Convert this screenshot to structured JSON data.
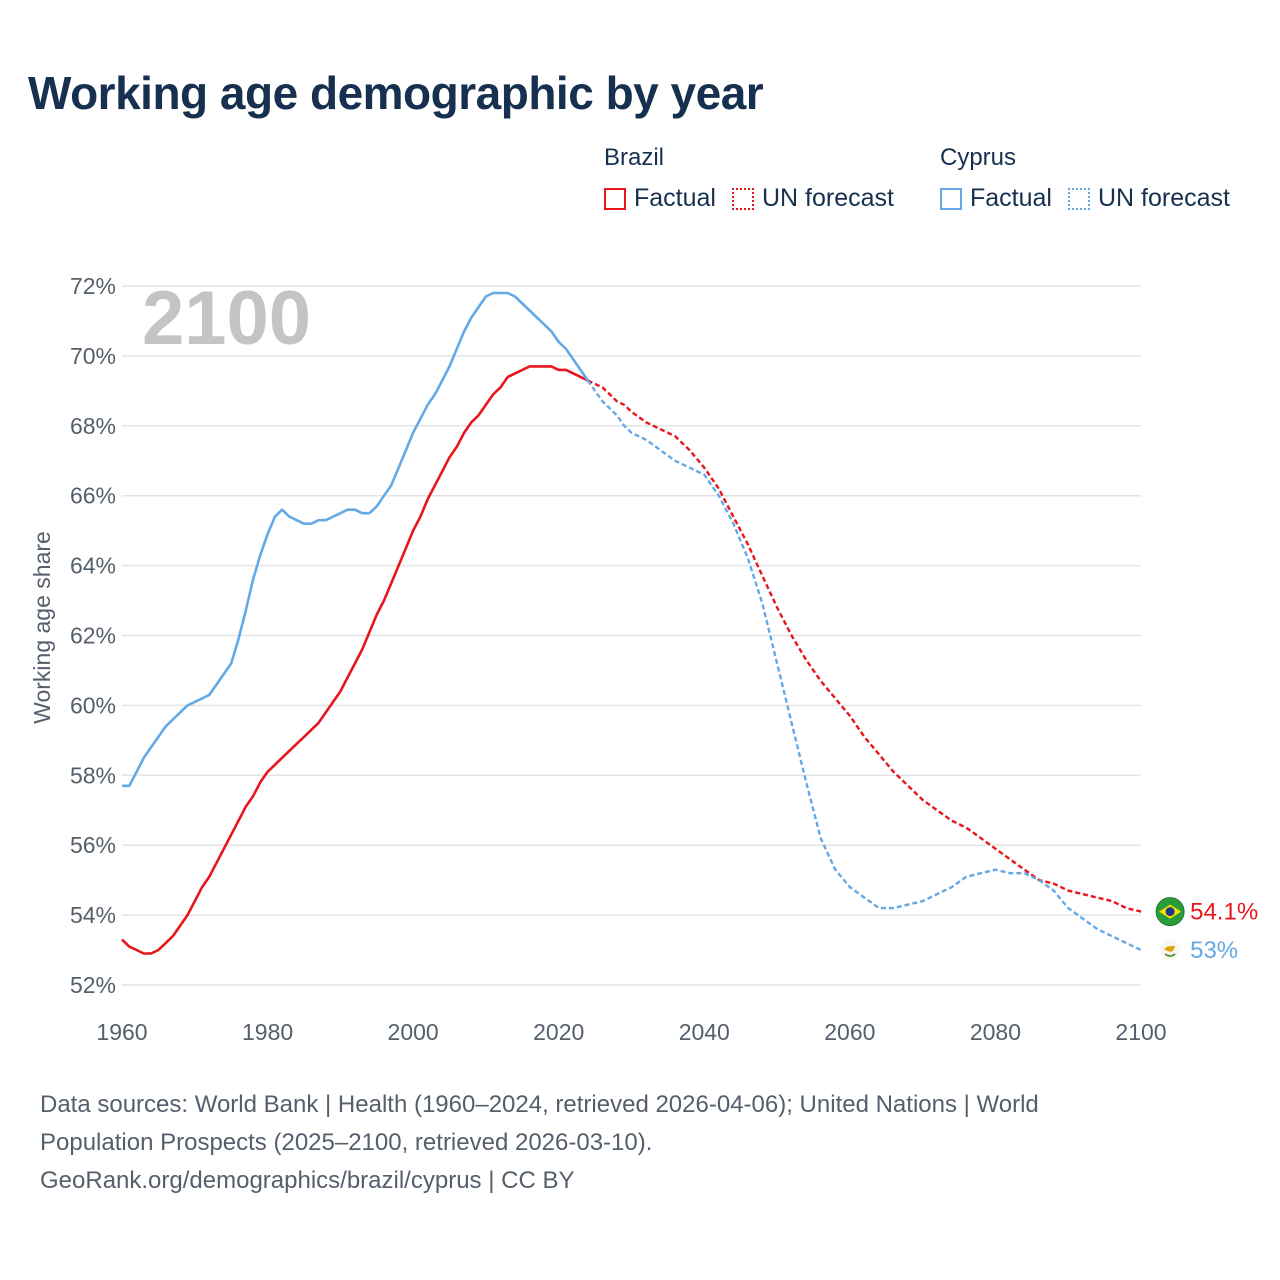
{
  "title": "Working age demographic by year",
  "legend": {
    "groups": [
      {
        "name": "Brazil",
        "color": "#e8161b",
        "items": [
          {
            "label": "Factual",
            "style": "solid"
          },
          {
            "label": "UN forecast",
            "style": "dotted"
          }
        ]
      },
      {
        "name": "Cyprus",
        "color": "#64a9e6",
        "items": [
          {
            "label": "Factual",
            "style": "solid"
          },
          {
            "label": "UN forecast",
            "style": "dotted"
          }
        ]
      }
    ]
  },
  "year_watermark": "2100",
  "footer": {
    "line1": "Data sources: World Bank | Health (1960–2024, retrieved 2026-04-06); United Nations | World",
    "line2": "Population Prospects (2025–2100, retrieved 2026-03-10).",
    "line3": "GeoRank.org/demographics/brazil/cyprus | CC BY"
  },
  "chart_data": {
    "type": "line",
    "title": "Working age demographic by year",
    "xlabel": "",
    "ylabel": "Working age share",
    "xlim": [
      1960,
      2100
    ],
    "ylim": [
      52,
      72
    ],
    "xticks": [
      1960,
      1980,
      2000,
      2020,
      2040,
      2060,
      2080,
      2100
    ],
    "xtick_labels": [
      "1960",
      "1980",
      "2000",
      "2020",
      "2040",
      "2060",
      "2080",
      "2100"
    ],
    "yticks": [
      52,
      54,
      56,
      58,
      60,
      62,
      64,
      66,
      68,
      70,
      72
    ],
    "ytick_labels": [
      "52%",
      "54%",
      "56%",
      "58%",
      "60%",
      "62%",
      "64%",
      "66%",
      "68%",
      "70%",
      "72%"
    ],
    "grid": "horizontal",
    "split_year": 2024,
    "series": [
      {
        "name": "Brazil",
        "color": "#e8161b",
        "end_label": "54.1%",
        "end_marker": "brazil-flag",
        "points": [
          [
            1960,
            53.3
          ],
          [
            1961,
            53.1
          ],
          [
            1962,
            53.0
          ],
          [
            1963,
            52.9
          ],
          [
            1964,
            52.9
          ],
          [
            1965,
            53.0
          ],
          [
            1966,
            53.2
          ],
          [
            1967,
            53.4
          ],
          [
            1968,
            53.7
          ],
          [
            1969,
            54.0
          ],
          [
            1970,
            54.4
          ],
          [
            1971,
            54.8
          ],
          [
            1972,
            55.1
          ],
          [
            1973,
            55.5
          ],
          [
            1974,
            55.9
          ],
          [
            1975,
            56.3
          ],
          [
            1976,
            56.7
          ],
          [
            1977,
            57.1
          ],
          [
            1978,
            57.4
          ],
          [
            1979,
            57.8
          ],
          [
            1980,
            58.1
          ],
          [
            1981,
            58.3
          ],
          [
            1982,
            58.5
          ],
          [
            1983,
            58.7
          ],
          [
            1984,
            58.9
          ],
          [
            1985,
            59.1
          ],
          [
            1986,
            59.3
          ],
          [
            1987,
            59.5
          ],
          [
            1988,
            59.8
          ],
          [
            1989,
            60.1
          ],
          [
            1990,
            60.4
          ],
          [
            1991,
            60.8
          ],
          [
            1992,
            61.2
          ],
          [
            1993,
            61.6
          ],
          [
            1994,
            62.1
          ],
          [
            1995,
            62.6
          ],
          [
            1996,
            63.0
          ],
          [
            1997,
            63.5
          ],
          [
            1998,
            64.0
          ],
          [
            1999,
            64.5
          ],
          [
            2000,
            65.0
          ],
          [
            2001,
            65.4
          ],
          [
            2002,
            65.9
          ],
          [
            2003,
            66.3
          ],
          [
            2004,
            66.7
          ],
          [
            2005,
            67.1
          ],
          [
            2006,
            67.4
          ],
          [
            2007,
            67.8
          ],
          [
            2008,
            68.1
          ],
          [
            2009,
            68.3
          ],
          [
            2010,
            68.6
          ],
          [
            2011,
            68.9
          ],
          [
            2012,
            69.1
          ],
          [
            2013,
            69.4
          ],
          [
            2014,
            69.5
          ],
          [
            2015,
            69.6
          ],
          [
            2016,
            69.7
          ],
          [
            2017,
            69.7
          ],
          [
            2018,
            69.7
          ],
          [
            2019,
            69.7
          ],
          [
            2020,
            69.6
          ],
          [
            2021,
            69.6
          ],
          [
            2022,
            69.5
          ],
          [
            2023,
            69.4
          ],
          [
            2024,
            69.3
          ],
          [
            2025,
            69.2
          ],
          [
            2026,
            69.1
          ],
          [
            2027,
            68.9
          ],
          [
            2028,
            68.7
          ],
          [
            2029,
            68.6
          ],
          [
            2030,
            68.4
          ],
          [
            2032,
            68.1
          ],
          [
            2034,
            67.9
          ],
          [
            2036,
            67.7
          ],
          [
            2038,
            67.3
          ],
          [
            2040,
            66.8
          ],
          [
            2042,
            66.2
          ],
          [
            2044,
            65.4
          ],
          [
            2046,
            64.6
          ],
          [
            2048,
            63.7
          ],
          [
            2050,
            62.8
          ],
          [
            2052,
            62.0
          ],
          [
            2054,
            61.3
          ],
          [
            2056,
            60.7
          ],
          [
            2058,
            60.2
          ],
          [
            2060,
            59.7
          ],
          [
            2062,
            59.1
          ],
          [
            2064,
            58.6
          ],
          [
            2066,
            58.1
          ],
          [
            2068,
            57.7
          ],
          [
            2070,
            57.3
          ],
          [
            2072,
            57.0
          ],
          [
            2074,
            56.7
          ],
          [
            2076,
            56.5
          ],
          [
            2078,
            56.2
          ],
          [
            2080,
            55.9
          ],
          [
            2082,
            55.6
          ],
          [
            2084,
            55.3
          ],
          [
            2086,
            55.0
          ],
          [
            2088,
            54.9
          ],
          [
            2090,
            54.7
          ],
          [
            2092,
            54.6
          ],
          [
            2094,
            54.5
          ],
          [
            2096,
            54.4
          ],
          [
            2098,
            54.2
          ],
          [
            2100,
            54.1
          ]
        ]
      },
      {
        "name": "Cyprus",
        "color": "#64a9e6",
        "end_label": "53%",
        "end_marker": "cyprus-flag",
        "points": [
          [
            1960,
            57.7
          ],
          [
            1961,
            57.7
          ],
          [
            1962,
            58.1
          ],
          [
            1963,
            58.5
          ],
          [
            1964,
            58.8
          ],
          [
            1965,
            59.1
          ],
          [
            1966,
            59.4
          ],
          [
            1967,
            59.6
          ],
          [
            1968,
            59.8
          ],
          [
            1969,
            60.0
          ],
          [
            1970,
            60.1
          ],
          [
            1971,
            60.2
          ],
          [
            1972,
            60.3
          ],
          [
            1973,
            60.6
          ],
          [
            1974,
            60.9
          ],
          [
            1975,
            61.2
          ],
          [
            1976,
            61.9
          ],
          [
            1977,
            62.7
          ],
          [
            1978,
            63.6
          ],
          [
            1979,
            64.3
          ],
          [
            1980,
            64.9
          ],
          [
            1981,
            65.4
          ],
          [
            1982,
            65.6
          ],
          [
            1983,
            65.4
          ],
          [
            1984,
            65.3
          ],
          [
            1985,
            65.2
          ],
          [
            1986,
            65.2
          ],
          [
            1987,
            65.3
          ],
          [
            1988,
            65.3
          ],
          [
            1989,
            65.4
          ],
          [
            1990,
            65.5
          ],
          [
            1991,
            65.6
          ],
          [
            1992,
            65.6
          ],
          [
            1993,
            65.5
          ],
          [
            1994,
            65.5
          ],
          [
            1995,
            65.7
          ],
          [
            1996,
            66.0
          ],
          [
            1997,
            66.3
          ],
          [
            1998,
            66.8
          ],
          [
            1999,
            67.3
          ],
          [
            2000,
            67.8
          ],
          [
            2001,
            68.2
          ],
          [
            2002,
            68.6
          ],
          [
            2003,
            68.9
          ],
          [
            2004,
            69.3
          ],
          [
            2005,
            69.7
          ],
          [
            2006,
            70.2
          ],
          [
            2007,
            70.7
          ],
          [
            2008,
            71.1
          ],
          [
            2009,
            71.4
          ],
          [
            2010,
            71.7
          ],
          [
            2011,
            71.8
          ],
          [
            2012,
            71.8
          ],
          [
            2013,
            71.8
          ],
          [
            2014,
            71.7
          ],
          [
            2015,
            71.5
          ],
          [
            2016,
            71.3
          ],
          [
            2017,
            71.1
          ],
          [
            2018,
            70.9
          ],
          [
            2019,
            70.7
          ],
          [
            2020,
            70.4
          ],
          [
            2021,
            70.2
          ],
          [
            2022,
            69.9
          ],
          [
            2023,
            69.6
          ],
          [
            2024,
            69.3
          ],
          [
            2025,
            69.0
          ],
          [
            2026,
            68.7
          ],
          [
            2027,
            68.5
          ],
          [
            2028,
            68.3
          ],
          [
            2029,
            68.0
          ],
          [
            2030,
            67.8
          ],
          [
            2032,
            67.6
          ],
          [
            2034,
            67.3
          ],
          [
            2036,
            67.0
          ],
          [
            2038,
            66.8
          ],
          [
            2040,
            66.6
          ],
          [
            2042,
            66.0
          ],
          [
            2044,
            65.2
          ],
          [
            2046,
            64.2
          ],
          [
            2048,
            62.9
          ],
          [
            2050,
            61.2
          ],
          [
            2052,
            59.5
          ],
          [
            2054,
            57.8
          ],
          [
            2056,
            56.2
          ],
          [
            2058,
            55.3
          ],
          [
            2060,
            54.8
          ],
          [
            2062,
            54.5
          ],
          [
            2064,
            54.2
          ],
          [
            2066,
            54.2
          ],
          [
            2068,
            54.3
          ],
          [
            2070,
            54.4
          ],
          [
            2072,
            54.6
          ],
          [
            2074,
            54.8
          ],
          [
            2076,
            55.1
          ],
          [
            2078,
            55.2
          ],
          [
            2080,
            55.3
          ],
          [
            2082,
            55.2
          ],
          [
            2084,
            55.2
          ],
          [
            2086,
            55.0
          ],
          [
            2088,
            54.7
          ],
          [
            2090,
            54.2
          ],
          [
            2092,
            53.9
          ],
          [
            2094,
            53.6
          ],
          [
            2096,
            53.4
          ],
          [
            2098,
            53.2
          ],
          [
            2100,
            53.0
          ]
        ]
      }
    ]
  }
}
